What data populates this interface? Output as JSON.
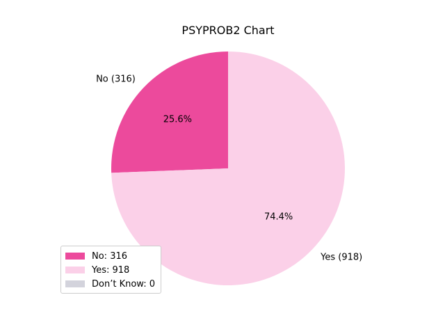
{
  "chart_data": {
    "type": "pie",
    "title": "PSYPROB2 Chart",
    "slices": [
      {
        "label": "No (316)",
        "value": 316,
        "percent_label": "25.6%",
        "color": "#EC4A9C"
      },
      {
        "label": "Yes (918)",
        "value": 918,
        "percent_label": "74.4%",
        "color": "#FBD0E8"
      }
    ],
    "legend": {
      "position": "lower-left",
      "entries": [
        {
          "label": "No: 316",
          "color": "#EC4A9C"
        },
        {
          "label": "Yes: 918",
          "color": "#FBD0E8"
        },
        {
          "label": "Don’t Know: 0",
          "color": "#D3D3DC"
        }
      ]
    }
  }
}
